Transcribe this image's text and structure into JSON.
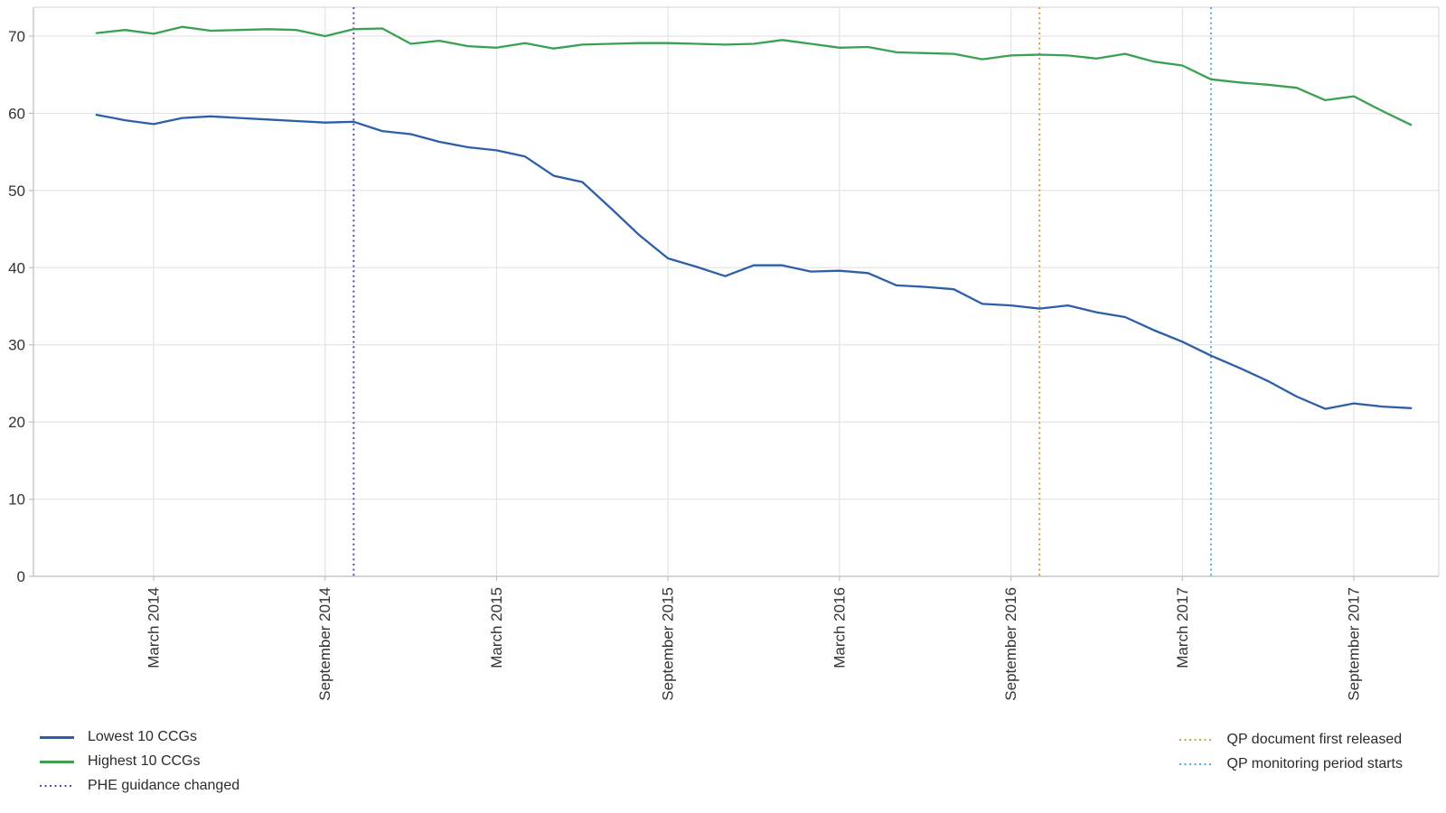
{
  "chart_data": {
    "type": "line",
    "title": "",
    "xlabel": "",
    "ylabel": "",
    "grid": true,
    "legend_position": "bottom",
    "ylim": [
      0,
      73.7
    ],
    "y_ticks": [
      0,
      10,
      20,
      30,
      40,
      50,
      60,
      70
    ],
    "x": [
      "Jan 2014",
      "Feb 2014",
      "Mar 2014",
      "Apr 2014",
      "May 2014",
      "Jun 2014",
      "Jul 2014",
      "Aug 2014",
      "Sep 2014",
      "Oct 2014",
      "Nov 2014",
      "Dec 2014",
      "Jan 2015",
      "Feb 2015",
      "Mar 2015",
      "Apr 2015",
      "May 2015",
      "Jun 2015",
      "Jul 2015",
      "Aug 2015",
      "Sep 2015",
      "Oct 2015",
      "Nov 2015",
      "Dec 2015",
      "Jan 2016",
      "Feb 2016",
      "Mar 2016",
      "Apr 2016",
      "May 2016",
      "Jun 2016",
      "Jul 2016",
      "Aug 2016",
      "Sep 2016",
      "Oct 2016",
      "Nov 2016",
      "Dec 2016",
      "Jan 2017",
      "Feb 2017",
      "Mar 2017",
      "Apr 2017",
      "May 2017",
      "Jun 2017",
      "Jul 2017",
      "Aug 2017",
      "Sep 2017",
      "Oct 2017",
      "Nov 2017"
    ],
    "x_ticks": [
      {
        "index": 2,
        "label": "March 2014"
      },
      {
        "index": 8,
        "label": "September 2014"
      },
      {
        "index": 14,
        "label": "March 2015"
      },
      {
        "index": 20,
        "label": "September 2015"
      },
      {
        "index": 26,
        "label": "March 2016"
      },
      {
        "index": 32,
        "label": "September 2016"
      },
      {
        "index": 38,
        "label": "March 2017"
      },
      {
        "index": 44,
        "label": "September 2017"
      }
    ],
    "series": [
      {
        "name": "Lowest 10 CCGs",
        "color": "#2d5fa8",
        "style": "solid",
        "values": [
          59.8,
          59.1,
          58.6,
          59.4,
          59.6,
          59.4,
          59.2,
          59.0,
          58.8,
          58.9,
          57.7,
          57.3,
          56.3,
          55.6,
          55.2,
          54.4,
          51.9,
          51.1,
          47.7,
          44.2,
          41.2,
          40.1,
          38.9,
          40.3,
          40.3,
          39.5,
          39.6,
          39.3,
          37.7,
          37.5,
          37.2,
          35.3,
          35.1,
          34.7,
          35.1,
          34.2,
          33.6,
          31.9,
          30.4,
          28.6,
          27.0,
          25.3,
          23.3,
          21.7,
          22.4,
          22.0,
          21.8
        ]
      },
      {
        "name": "Highest 10 CCGs",
        "color": "#3aa152",
        "style": "solid",
        "values": [
          70.4,
          70.8,
          70.3,
          71.2,
          70.7,
          70.8,
          70.9,
          70.8,
          70.0,
          70.9,
          71.0,
          69.0,
          69.4,
          68.7,
          68.5,
          69.1,
          68.4,
          68.9,
          69.0,
          69.1,
          69.1,
          69.0,
          68.9,
          69.0,
          69.5,
          69.0,
          68.5,
          68.6,
          67.9,
          67.8,
          67.7,
          67.0,
          67.5,
          67.6,
          67.5,
          67.1,
          67.7,
          66.7,
          66.2,
          64.4,
          64.0,
          63.7,
          63.3,
          61.7,
          62.2,
          60.3,
          58.5
        ]
      }
    ],
    "vlines": [
      {
        "label": "PHE guidance changed",
        "at_month": "Oct 2014",
        "index": 9,
        "color": "#5048b8",
        "style": "dotted"
      },
      {
        "label": "QP document first released",
        "at_month": "Oct 2016",
        "index": 33,
        "color": "#d0a046",
        "style": "dotted"
      },
      {
        "label": "QP monitoring period starts",
        "at_month": "Apr 2017",
        "index": 39,
        "color": "#55aad7",
        "style": "dotted"
      }
    ]
  }
}
